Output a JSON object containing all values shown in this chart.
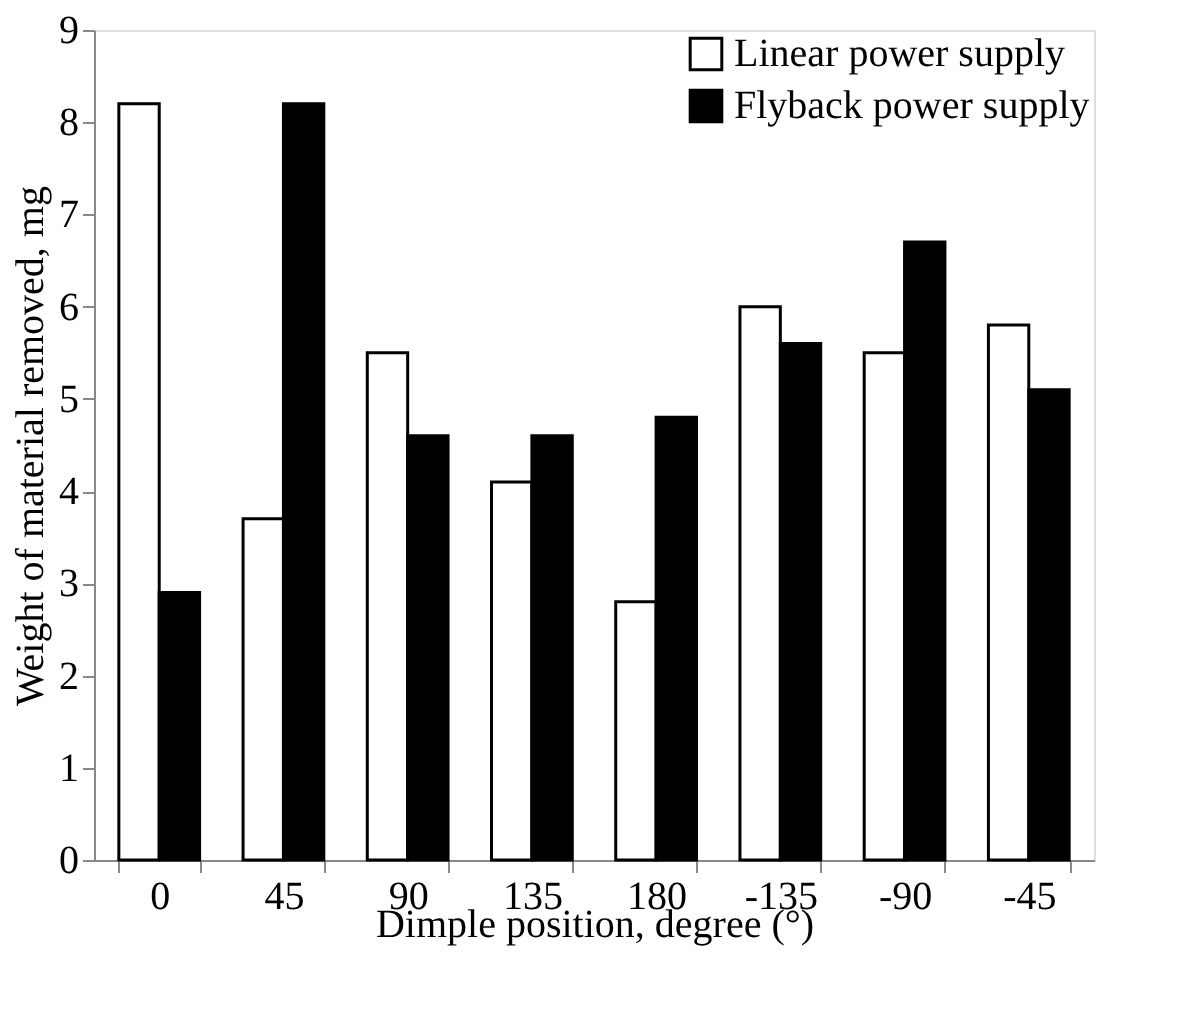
{
  "chart_data": {
    "type": "bar",
    "xlabel": "Dimple position, degree (°)",
    "ylabel": "Weight of material removed, mg",
    "categories": [
      "0",
      "45",
      "90",
      "135",
      "180",
      "-135",
      "-90",
      "-45"
    ],
    "series": [
      {
        "name": "Linear power supply",
        "color": "#ffffff",
        "values": [
          8.2,
          3.7,
          5.5,
          4.1,
          2.8,
          6.0,
          5.5,
          5.8
        ]
      },
      {
        "name": "Flyback power supply",
        "color": "#000000",
        "values": [
          2.9,
          8.2,
          4.6,
          4.6,
          4.8,
          5.6,
          6.7,
          5.1
        ]
      }
    ],
    "ylim": [
      0,
      9
    ],
    "yticks": [
      0,
      1,
      2,
      3,
      4,
      5,
      6,
      7,
      8,
      9
    ],
    "grid": false,
    "legend": "top right"
  }
}
